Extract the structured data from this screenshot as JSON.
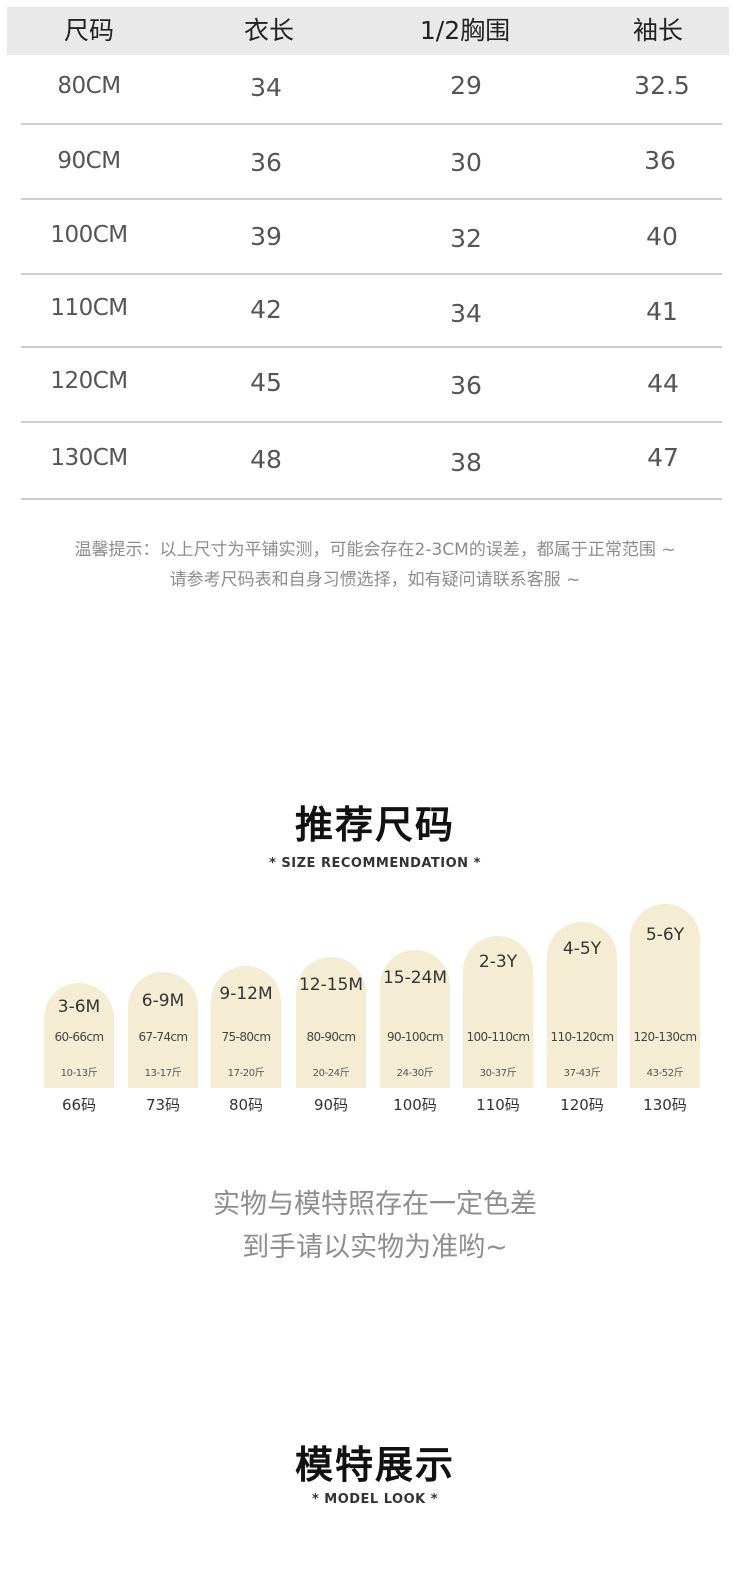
{
  "size_table": {
    "headers": [
      "尺码",
      "衣长",
      "1/2胸围",
      "袖长"
    ],
    "rows": [
      [
        "80CM",
        "34",
        "29",
        "32.5"
      ],
      [
        "90CM",
        "36",
        "30",
        "36"
      ],
      [
        "100CM",
        "39",
        "32",
        "40"
      ],
      [
        "110CM",
        "42",
        "34",
        "41"
      ],
      [
        "120CM",
        "45",
        "36",
        "44"
      ],
      [
        "130CM",
        "48",
        "38",
        "47"
      ]
    ]
  },
  "tip": {
    "line1": "温馨提示：以上尺寸为平铺实测，可能会存在2-3CM的误差，都属于正常范围 ~",
    "line2": "请参考尺码表和自身习惯选择，如有疑问请联系客服 ~"
  },
  "recommendation": {
    "title": "推荐尺码",
    "subtitle": "* SIZE RECOMMENDATION *",
    "items": [
      {
        "age": "3-6M",
        "height": "60-66cm",
        "weight": "10-13斤",
        "code": "66码"
      },
      {
        "age": "6-9M",
        "height": "67-74cm",
        "weight": "13-17斤",
        "code": "73码"
      },
      {
        "age": "9-12M",
        "height": "75-80cm",
        "weight": "17-20斤",
        "code": "80码"
      },
      {
        "age": "12-15M",
        "height": "80-90cm",
        "weight": "20-24斤",
        "code": "90码"
      },
      {
        "age": "15-24M",
        "height": "90-100cm",
        "weight": "24-30斤",
        "code": "100码"
      },
      {
        "age": "2-3Y",
        "height": "100-110cm",
        "weight": "30-37斤",
        "code": "110码"
      },
      {
        "age": "4-5Y",
        "height": "110-120cm",
        "weight": "37-43斤",
        "code": "120码"
      },
      {
        "age": "5-6Y",
        "height": "120-130cm",
        "weight": "43-52斤",
        "code": "130码"
      }
    ]
  },
  "color_note": {
    "line1": "实物与模特照存在一定色差",
    "line2": "到手请以实物为准哟~"
  },
  "model_section": {
    "title": "模特展示",
    "subtitle": "* MODEL LOOK *"
  },
  "colors": {
    "header_bg": "#e9e9e9",
    "pill_bg": "#f5edd3",
    "divider": "#cfcfcf",
    "muted_text": "#8c8c8c"
  }
}
